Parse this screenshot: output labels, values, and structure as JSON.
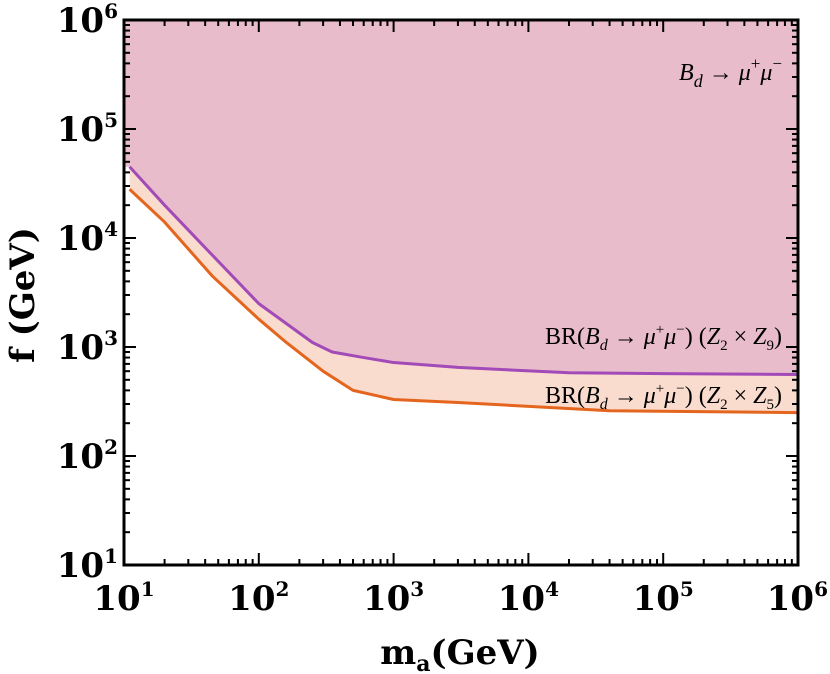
{
  "chart_data": {
    "type": "area",
    "x_scale": "log",
    "y_scale": "log",
    "xlim": [
      10,
      1000000
    ],
    "ylim": [
      10,
      1000000
    ],
    "xlabel": {
      "main": "m",
      "sub": "a",
      "rest": "(GeV)"
    },
    "ylabel": "f (GeV)",
    "x_ticks": [
      {
        "base": "10",
        "exp": "1",
        "value": 10
      },
      {
        "base": "10",
        "exp": "2",
        "value": 100
      },
      {
        "base": "10",
        "exp": "3",
        "value": 1000
      },
      {
        "base": "10",
        "exp": "4",
        "value": 10000
      },
      {
        "base": "10",
        "exp": "5",
        "value": 100000
      },
      {
        "base": "10",
        "exp": "6",
        "value": 1000000
      }
    ],
    "y_ticks": [
      {
        "base": "10",
        "exp": "1",
        "value": 10
      },
      {
        "base": "10",
        "exp": "2",
        "value": 100
      },
      {
        "base": "10",
        "exp": "3",
        "value": 1000
      },
      {
        "base": "10",
        "exp": "4",
        "value": 10000
      },
      {
        "base": "10",
        "exp": "5",
        "value": 100000
      },
      {
        "base": "10",
        "exp": "6",
        "value": 1000000
      }
    ],
    "grid": false,
    "series": [
      {
        "name": "BR(B_d → μ⁺μ⁻) (Z₂ × Z₉)",
        "color": "#a24ab8",
        "fill": "#e8bcca",
        "x": [
          11,
          20,
          45,
          100,
          250,
          350,
          600,
          1000,
          3000,
          20000,
          100000,
          1000000
        ],
        "y": [
          45000,
          20000,
          7000,
          2500,
          1100,
          900,
          800,
          720,
          650,
          580,
          570,
          560
        ]
      },
      {
        "name": "BR(B_d → μ⁺μ⁻) (Z₂ × Z₅)",
        "color": "#e4651e",
        "fill": "#f9dccd",
        "x": [
          11,
          20,
          45,
          100,
          160,
          300,
          500,
          1000,
          3000,
          40000,
          1000000
        ],
        "y": [
          28000,
          14000,
          4500,
          1800,
          1100,
          600,
          400,
          330,
          310,
          260,
          250
        ]
      }
    ],
    "annotations": {
      "region": {
        "main": "B",
        "sub": "d",
        "arrow": " → ",
        "mu": "μ",
        "plus": "+",
        "mu2": "μ",
        "minus": "−"
      },
      "z9": {
        "pre": "BR(",
        "B": "B",
        "sub": "d",
        "arrow": " → ",
        "mu": "μ",
        "plus": "+",
        "mu2": "μ",
        "minus": "−",
        "post": ") (",
        "z": "Z",
        "s1": "2",
        "times": " × ",
        "z2": "Z",
        "s2": "9",
        "close": ")"
      },
      "z5": {
        "pre": "BR(",
        "B": "B",
        "sub": "d",
        "arrow": " → ",
        "mu": "μ",
        "plus": "+",
        "mu2": "μ",
        "minus": "−",
        "post": ") (",
        "z": "Z",
        "s1": "2",
        "times": " × ",
        "z2": "Z",
        "s2": "5",
        "close": ")"
      }
    }
  }
}
